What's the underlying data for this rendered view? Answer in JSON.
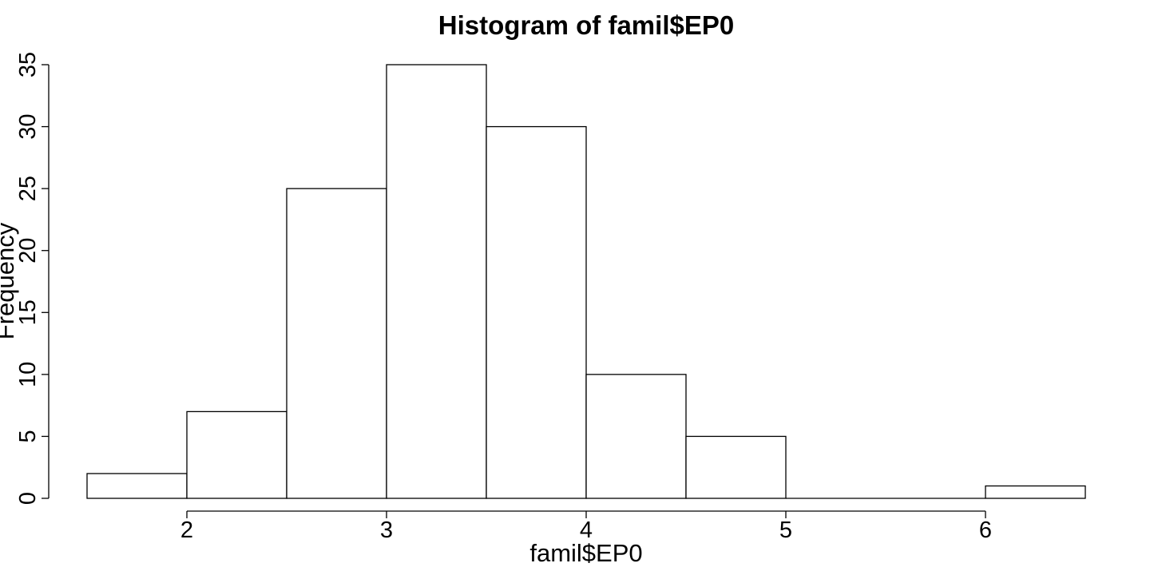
{
  "chart_data": {
    "type": "bar",
    "title": "Histogram of famil$EP0",
    "xlabel": "famil$EP0",
    "ylabel": "Frequency",
    "bins": [
      {
        "start": 1.5,
        "end": 2.0,
        "count": 2
      },
      {
        "start": 2.0,
        "end": 2.5,
        "count": 7
      },
      {
        "start": 2.5,
        "end": 3.0,
        "count": 25
      },
      {
        "start": 3.0,
        "end": 3.5,
        "count": 35
      },
      {
        "start": 3.5,
        "end": 4.0,
        "count": 30
      },
      {
        "start": 4.0,
        "end": 4.5,
        "count": 10
      },
      {
        "start": 4.5,
        "end": 5.0,
        "count": 5
      },
      {
        "start": 5.0,
        "end": 5.5,
        "count": 0
      },
      {
        "start": 5.5,
        "end": 6.0,
        "count": 0
      },
      {
        "start": 6.0,
        "end": 6.5,
        "count": 1
      }
    ],
    "xticks": [
      "2",
      "3",
      "4",
      "5",
      "6"
    ],
    "yticks": [
      "0",
      "5",
      "10",
      "15",
      "20",
      "25",
      "30",
      "35"
    ],
    "xlim": [
      1.5,
      6.5
    ],
    "ylim": [
      0,
      35
    ],
    "grid": false,
    "bar_fill": "#ffffff",
    "bar_stroke": "#000000"
  }
}
